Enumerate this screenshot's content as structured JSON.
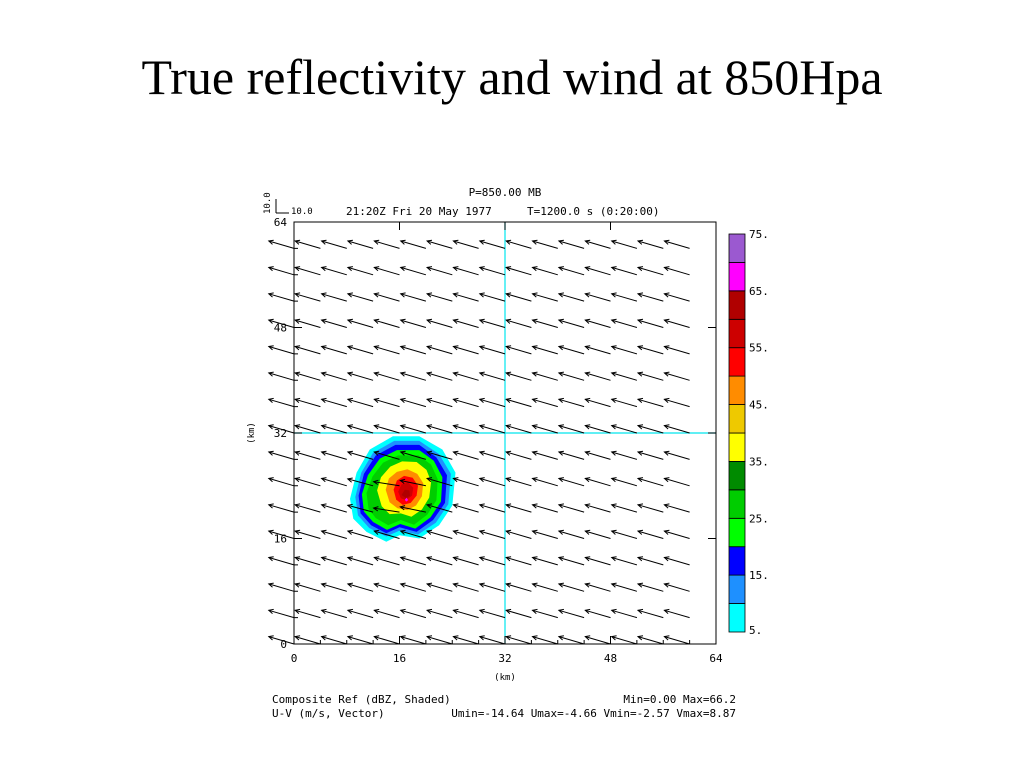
{
  "slide": {
    "title": "True reflectivity and wind at 850Hpa"
  },
  "plot_header": {
    "pressure": "P=850.00 MB",
    "datetime": "21:20Z Fri 20 May 1977",
    "model_time": "T=1200.0 s (0:20:00)",
    "ref_vector_value": "10.0",
    "ref_vector_value_x": "10.0"
  },
  "plot_footer": {
    "field1": "Composite Ref (dBZ, Shaded)",
    "field1_range": "Min=0.00 Max=66.2",
    "field2": "U-V (m/s, Vector)",
    "field2_range": "Umin=-14.64 Umax=-4.66 Vmin=-2.57 Vmax=8.87"
  },
  "colors": {
    "crosshair": "#00e5ee",
    "frame": "#000000"
  },
  "chart_data": {
    "type": "heatmap",
    "xlabel": "(km)",
    "ylabel": "(km)",
    "xlim": [
      0,
      64
    ],
    "ylim": [
      0,
      64
    ],
    "x_ticks": [
      "0",
      "16",
      "32",
      "48",
      "64"
    ],
    "y_ticks": [
      "0",
      "16",
      "32",
      "48",
      "64"
    ],
    "crosshair": {
      "x": 32,
      "y": 32
    },
    "colorbar": {
      "labels": [
        "5.",
        "15.",
        "25.",
        "35.",
        "45.",
        "55.",
        "65.",
        "75."
      ],
      "levels": [
        5,
        10,
        15,
        20,
        25,
        30,
        35,
        40,
        45,
        50,
        55,
        60,
        65,
        70,
        75
      ],
      "colors": [
        "#00ffff",
        "#1e90ff",
        "#0000ff",
        "#00ff00",
        "#00cd00",
        "#008b00",
        "#ffff00",
        "#eec900",
        "#ff8c00",
        "#ff0000",
        "#cd0000",
        "#b00000",
        "#ff00ff",
        "#9b59d0"
      ]
    },
    "reflectivity_contours": [
      {
        "level": 5,
        "color": "#00ffff",
        "polygon": [
          [
            8.5,
            22
          ],
          [
            9.5,
            26
          ],
          [
            11.5,
            29.5
          ],
          [
            15,
            31.5
          ],
          [
            19,
            31.5
          ],
          [
            22.5,
            29.5
          ],
          [
            24.5,
            26
          ],
          [
            24,
            21
          ],
          [
            22,
            18
          ],
          [
            19,
            16
          ],
          [
            16,
            16.5
          ],
          [
            14,
            15.5
          ],
          [
            11,
            17
          ],
          [
            9,
            19
          ]
        ]
      },
      {
        "level": 10,
        "color": "#1e90ff",
        "polygon": [
          [
            9.3,
            22.3
          ],
          [
            10.2,
            26
          ],
          [
            12,
            29
          ],
          [
            15.2,
            30.8
          ],
          [
            19,
            30.8
          ],
          [
            22,
            28.8
          ],
          [
            23.8,
            25.8
          ],
          [
            23.4,
            21.2
          ],
          [
            21.5,
            18.4
          ],
          [
            18.8,
            16.6
          ],
          [
            16,
            17.2
          ],
          [
            14,
            16.3
          ],
          [
            11.4,
            17.6
          ],
          [
            9.7,
            19.5
          ]
        ]
      },
      {
        "level": 15,
        "color": "#0000ff",
        "polygon": [
          [
            9.8,
            22.5
          ],
          [
            10.6,
            25.8
          ],
          [
            12.4,
            28.6
          ],
          [
            15.4,
            30.2
          ],
          [
            19,
            30.2
          ],
          [
            21.6,
            28.3
          ],
          [
            23.2,
            25.6
          ],
          [
            22.9,
            21.4
          ],
          [
            21.1,
            18.8
          ],
          [
            18.6,
            17
          ],
          [
            16,
            17.7
          ],
          [
            14,
            16.8
          ],
          [
            11.7,
            18
          ],
          [
            10.1,
            19.8
          ]
        ]
      },
      {
        "level": 20,
        "color": "#00ff00",
        "polygon": [
          [
            10.3,
            22.7
          ],
          [
            11.2,
            25.6
          ],
          [
            13,
            28.1
          ],
          [
            15.6,
            29.4
          ],
          [
            19,
            29.4
          ],
          [
            21.2,
            27.8
          ],
          [
            22.5,
            25.3
          ],
          [
            22.3,
            21.6
          ],
          [
            20.7,
            19.2
          ],
          [
            18.4,
            17.5
          ],
          [
            16.1,
            18.2
          ],
          [
            14.1,
            17.3
          ],
          [
            12,
            18.5
          ],
          [
            10.6,
            20.1
          ]
        ]
      },
      {
        "level": 25,
        "color": "#00cd00",
        "polygon": [
          [
            11,
            22.9
          ],
          [
            11.9,
            25.4
          ],
          [
            13.5,
            27.5
          ],
          [
            15.8,
            28.6
          ],
          [
            18.9,
            28.6
          ],
          [
            20.8,
            27.2
          ],
          [
            21.8,
            25
          ],
          [
            21.6,
            21.8
          ],
          [
            20.2,
            19.6
          ],
          [
            18.2,
            18.1
          ],
          [
            16.2,
            18.8
          ],
          [
            14.3,
            18
          ],
          [
            12.4,
            19.1
          ],
          [
            11.3,
            20.5
          ]
        ]
      },
      {
        "level": 35,
        "color": "#ffff00",
        "polygon": [
          [
            12.6,
            23.3
          ],
          [
            13.2,
            25.3
          ],
          [
            14.6,
            26.9
          ],
          [
            16.4,
            27.7
          ],
          [
            18.6,
            27.6
          ],
          [
            20.1,
            26.4
          ],
          [
            20.8,
            24.6
          ],
          [
            20.5,
            22.2
          ],
          [
            19.4,
            20.4
          ],
          [
            17.8,
            19.3
          ],
          [
            16.2,
            19.8
          ],
          [
            14.5,
            19.7
          ],
          [
            13.3,
            20.9
          ]
        ]
      },
      {
        "level": 45,
        "color": "#ff8c00",
        "polygon": [
          [
            13.9,
            23.4
          ],
          [
            14.4,
            25.1
          ],
          [
            15.6,
            26.1
          ],
          [
            17.2,
            26.5
          ],
          [
            18.7,
            25.8
          ],
          [
            19.6,
            24.4
          ],
          [
            19.4,
            22.4
          ],
          [
            18.5,
            21
          ],
          [
            17.2,
            20.3
          ],
          [
            15.7,
            20.6
          ],
          [
            14.5,
            21.5
          ]
        ]
      },
      {
        "level": 50,
        "color": "#ff0000",
        "polygon": [
          [
            15.1,
            23.4
          ],
          [
            15.6,
            24.8
          ],
          [
            16.7,
            25.5
          ],
          [
            18,
            25.2
          ],
          [
            18.8,
            24
          ],
          [
            18.6,
            22.5
          ],
          [
            17.7,
            21.4
          ],
          [
            16.5,
            21.1
          ],
          [
            15.5,
            21.9
          ]
        ]
      },
      {
        "level": 55,
        "color": "#cd0000",
        "polygon": [
          [
            15.8,
            23.1
          ],
          [
            16.3,
            24.2
          ],
          [
            17.3,
            24.5
          ],
          [
            18.1,
            23.7
          ],
          [
            17.9,
            22.5
          ],
          [
            17,
            21.8
          ],
          [
            16.2,
            22.1
          ]
        ]
      },
      {
        "level": 60,
        "color": "#b00000",
        "polygon": [
          [
            16.3,
            22.6
          ],
          [
            16.8,
            23.4
          ],
          [
            17.5,
            23.3
          ],
          [
            17.6,
            22.5
          ],
          [
            17,
            22.1
          ]
        ]
      },
      {
        "level": 65,
        "color": "#ff00ff",
        "polygon": [
          [
            16.8,
            21.9
          ],
          [
            17.1,
            22.2
          ],
          [
            17.3,
            21.8
          ],
          [
            17,
            21.6
          ]
        ]
      }
    ],
    "wind_vectors": {
      "grid_step_km": 4,
      "x_range": [
        0,
        64
      ],
      "y_range": [
        0,
        64
      ],
      "reference_vector": {
        "u": 10.0,
        "v": 10.0
      },
      "background": {
        "u": -12.0,
        "v": 3.5
      },
      "storm_core": {
        "x": 17,
        "y": 22,
        "u": -12.5,
        "v": 1.0,
        "radius_km": 6
      }
    }
  }
}
